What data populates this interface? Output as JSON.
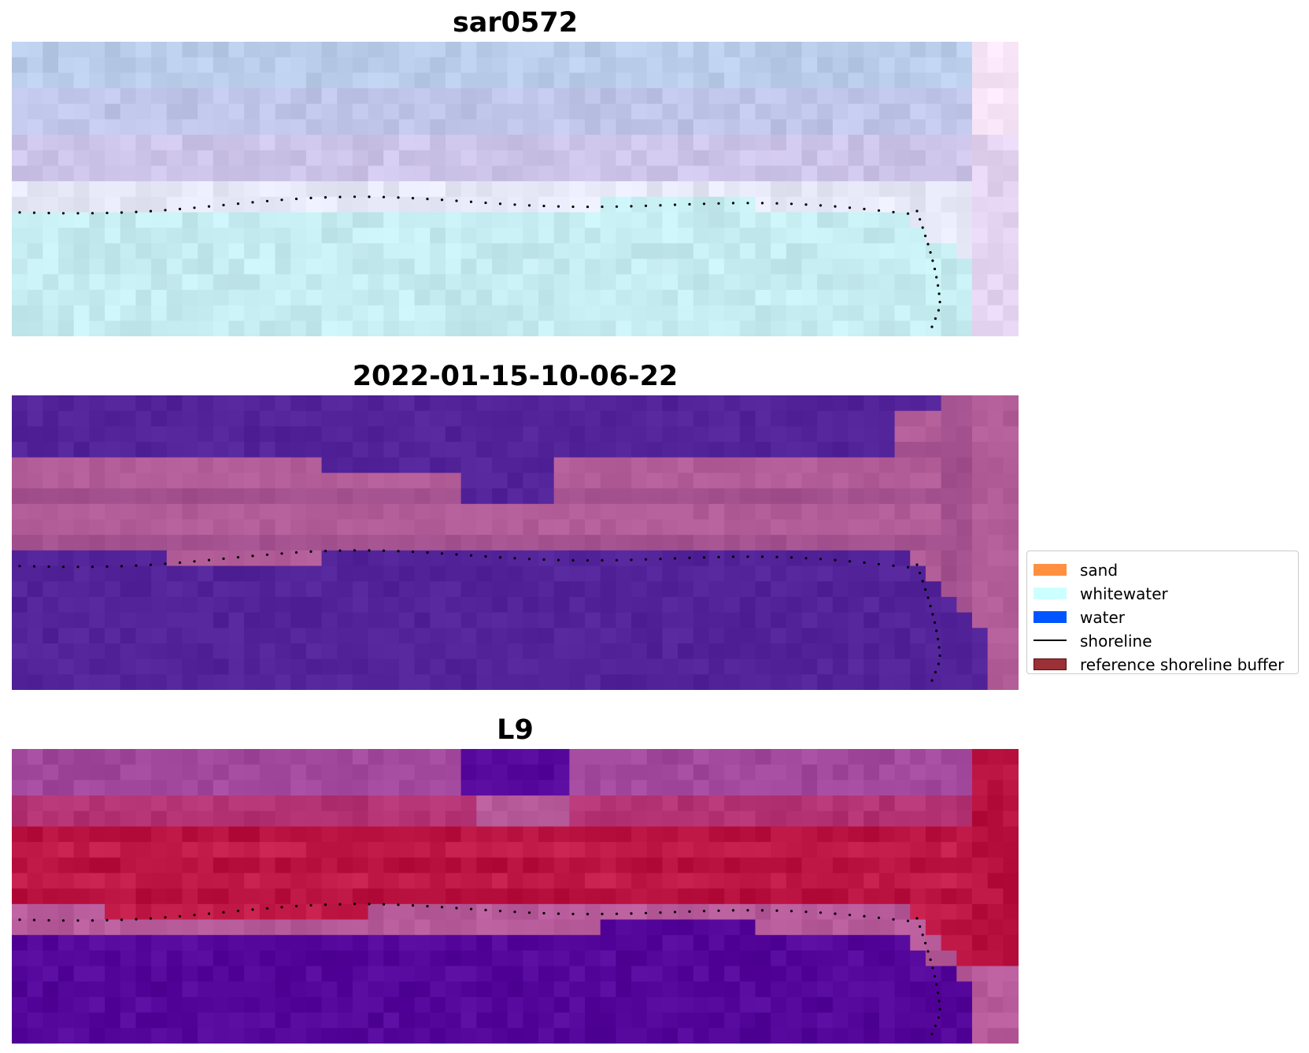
{
  "panels": [
    {
      "id": "rgb",
      "title": "sar0572",
      "palette": {
        "sky_top": "#b9cdea",
        "sky_mid": "#c3bfe6",
        "sky_low": "#d6c8ec",
        "foam": "#e6e8f8",
        "water": "#c5ecf0",
        "corner": "#f6e4f6"
      }
    },
    {
      "id": "classified",
      "title": "2022-01-15-10-06-22",
      "palette": {
        "dark": "#53239a",
        "pink": "#b25d98",
        "pink_dark": "#a2508e"
      }
    },
    {
      "id": "index",
      "title": "L9",
      "palette": {
        "purple_top": "#a2489c",
        "crimson": "#c41c4a",
        "crimson_dark": "#b8103e",
        "mauve": "#b65a9a",
        "deep_purple": "#55069a"
      }
    }
  ],
  "legend": {
    "items": [
      {
        "label": "sand",
        "kind": "patch",
        "color": "#ff9040"
      },
      {
        "label": "whitewater",
        "kind": "patch",
        "color": "#ccffff"
      },
      {
        "label": "water",
        "kind": "patch",
        "color": "#0055ff"
      },
      {
        "label": "shoreline",
        "kind": "line",
        "color": "#000000"
      },
      {
        "label": "reference shoreline buffer",
        "kind": "patch",
        "color": "#9b3036"
      }
    ]
  }
}
